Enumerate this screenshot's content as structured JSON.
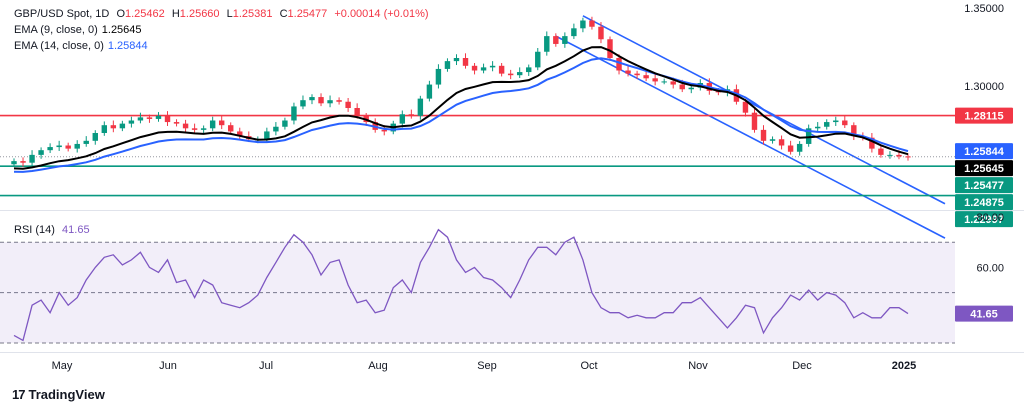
{
  "header": {
    "symbol": "GBP/USD Spot, 1D",
    "o_label": "O",
    "o_value": "1.25462",
    "h_label": "H",
    "h_value": "1.25660",
    "l_label": "L",
    "l_value": "1.25381",
    "c_label": "C",
    "c_value": "1.25477",
    "change": "+0.00014 (+0.01%)",
    "ema9_label": "EMA (9, close, 0)",
    "ema9_value": "1.25645",
    "ema14_label": "EMA (14, close, 0)",
    "ema14_value": "1.25844"
  },
  "rsi_header": {
    "label": "RSI (14)",
    "value": "41.65"
  },
  "branding": {
    "logo_mark": "17",
    "name": "TradingView"
  },
  "colors": {
    "bull": "#089981",
    "bear": "#f23645",
    "ema9": "#000000",
    "ema14": "#2962ff",
    "resistance": "#f23645",
    "support": "#089981",
    "channel": "#2962ff",
    "rsi": "#7e57c2"
  },
  "chart_data": [
    {
      "type": "candlestick",
      "title": "GBP/USD Spot, 1D",
      "x_labels": [
        "May",
        "Jun",
        "Jul",
        "Aug",
        "Sep",
        "Oct",
        "Nov",
        "Dec",
        "2025"
      ],
      "y_ticks": [
        "1.35000",
        "1.30000"
      ],
      "ylim": [
        1.222,
        1.35
      ],
      "series": [
        {
          "name": "GBP/USD",
          "close": [
            1.252,
            1.251,
            1.256,
            1.259,
            1.261,
            1.262,
            1.26,
            1.263,
            1.265,
            1.27,
            1.275,
            1.273,
            1.276,
            1.278,
            1.28,
            1.279,
            1.281,
            1.277,
            1.276,
            1.273,
            1.272,
            1.273,
            1.278,
            1.275,
            1.271,
            1.268,
            1.266,
            1.266,
            1.271,
            1.274,
            1.278,
            1.287,
            1.291,
            1.293,
            1.289,
            1.291,
            1.29,
            1.286,
            1.281,
            1.277,
            1.272,
            1.271,
            1.276,
            1.282,
            1.281,
            1.292,
            1.301,
            1.311,
            1.316,
            1.318,
            1.313,
            1.31,
            1.312,
            1.313,
            1.308,
            1.307,
            1.309,
            1.312,
            1.322,
            1.332,
            1.327,
            1.332,
            1.337,
            1.342,
            1.338,
            1.33,
            1.318,
            1.31,
            1.308,
            1.307,
            1.305,
            1.303,
            1.303,
            1.301,
            1.298,
            1.299,
            1.302,
            1.297,
            1.296,
            1.298,
            1.29,
            1.283,
            1.272,
            1.265,
            1.266,
            1.262,
            1.258,
            1.263,
            1.273,
            1.274,
            1.277,
            1.278,
            1.275,
            1.268,
            1.267,
            1.26,
            1.256,
            1.256,
            1.255,
            1.2548
          ]
        },
        {
          "name": "EMA (9, close, 0)",
          "last": 1.25645
        },
        {
          "name": "EMA (14, close, 0)",
          "last": 1.25844
        }
      ],
      "horizontal_lines": [
        {
          "value": 1.28115,
          "label": "1.28115",
          "role": "resistance"
        },
        {
          "value": 1.24875,
          "label": "1.24875",
          "role": "support"
        },
        {
          "value": 1.22997,
          "label": "1.22997",
          "role": "support"
        }
      ],
      "price_badges": [
        {
          "label": "1.28115",
          "style": "red"
        },
        {
          "label": "1.25844",
          "style": "blue"
        },
        {
          "label": "1.25645",
          "style": "black"
        },
        {
          "label": "1.25477",
          "style": "teal"
        },
        {
          "label": "1.24875",
          "style": "teal"
        },
        {
          "label": "1.22997",
          "style": "teal"
        }
      ],
      "channel": "descending",
      "grid": false
    },
    {
      "type": "line",
      "title": "RSI (14)",
      "y_ticks": [
        "80.00",
        "60.00"
      ],
      "ylim": [
        28,
        82
      ],
      "reference_lines": [
        70,
        50,
        30
      ],
      "series": [
        {
          "name": "RSI (14)",
          "values": [
            33,
            31,
            45,
            47,
            42,
            50,
            45,
            48,
            55,
            60,
            64,
            65,
            61,
            63,
            66,
            60,
            58,
            63,
            54,
            55,
            48,
            55,
            53,
            46,
            45,
            44,
            46,
            49,
            56,
            62,
            68,
            73,
            70,
            65,
            57,
            62,
            63,
            53,
            46,
            47,
            42,
            43,
            52,
            55,
            50,
            62,
            68,
            75,
            72,
            63,
            58,
            60,
            56,
            55,
            52,
            48,
            55,
            63,
            68,
            68,
            65,
            70,
            72,
            63,
            50,
            44,
            42,
            42,
            40,
            41,
            40,
            40,
            42,
            42,
            46,
            46,
            48,
            44,
            40,
            36,
            40,
            45,
            44,
            34,
            40,
            44,
            49,
            47,
            51,
            47,
            50,
            49,
            46,
            40,
            42,
            40,
            40,
            44,
            44,
            41.65
          ]
        }
      ],
      "last_value": "41.65"
    }
  ]
}
